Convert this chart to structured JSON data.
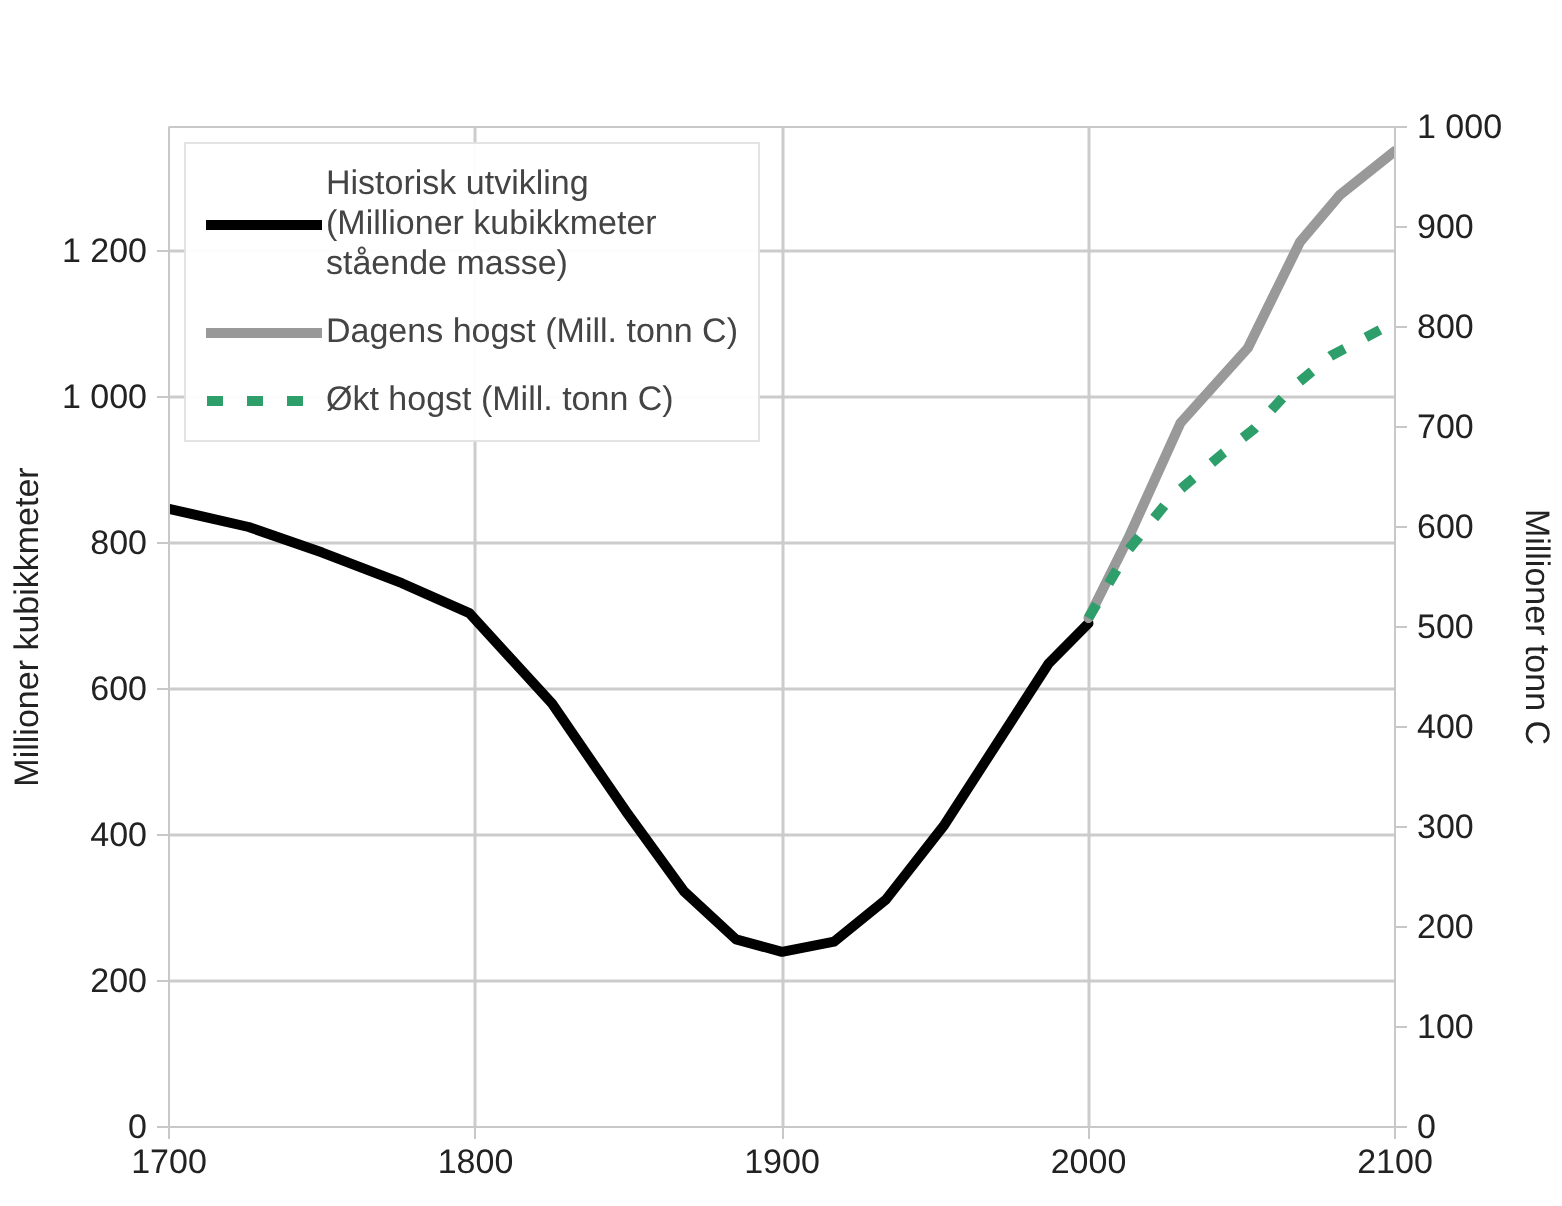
{
  "chart_data": {
    "type": "line",
    "xlabel": null,
    "ylabel": "Millioner kubikkmeter",
    "y2label": "Millioner tonn C",
    "xlim": [
      1700,
      2100
    ],
    "xticks": [
      1700,
      1800,
      1900,
      2000,
      2100
    ],
    "ylim": [
      0,
      1370
    ],
    "yticks": [
      0,
      200,
      400,
      600,
      800,
      {
        "value": 1000,
        "label": "1 000"
      },
      {
        "value": 1200,
        "label": "1 200"
      }
    ],
    "y2lim": [
      0,
      1000
    ],
    "y2ticks": [
      0,
      100,
      200,
      300,
      400,
      500,
      600,
      700,
      800,
      900,
      {
        "value": 1000,
        "label": "1 000"
      }
    ],
    "grid": true,
    "legend": "top left",
    "series": [
      {
        "name": "Historisk utvikling (Millioner kubikkmeter stående masse)",
        "color": "#000000",
        "line_style": "solid",
        "x": [
          1700,
          1726,
          1750,
          1776,
          1798,
          1825,
          1849,
          1868,
          1885,
          1900,
          1917,
          1934,
          1953,
          1987,
          2000
        ],
        "values": [
          847,
          822,
          787,
          745,
          704,
          580,
          433,
          323,
          257,
          240,
          254,
          312,
          414,
          635,
          690
        ]
      },
      {
        "name": "Dagens hogst (Mill. tonn C)",
        "color": "#999999",
        "axis": "y2",
        "line_style": "solid",
        "x": [
          2000,
          2013,
          2030,
          2052,
          2069,
          2082,
          2100
        ],
        "values": [
          509,
          589,
          704,
          779,
          885,
          932,
          976
        ]
      },
      {
        "name": "Økt hogst (Mill. tonn C)",
        "color": "#2e9e6a",
        "axis": "y2",
        "line_style": "dashed",
        "x": [
          2000,
          2013,
          2027,
          2044,
          2054,
          2066,
          2079,
          2100
        ],
        "values": [
          509,
          577,
          630,
          674,
          698,
          738,
          771,
          805
        ]
      }
    ]
  }
}
